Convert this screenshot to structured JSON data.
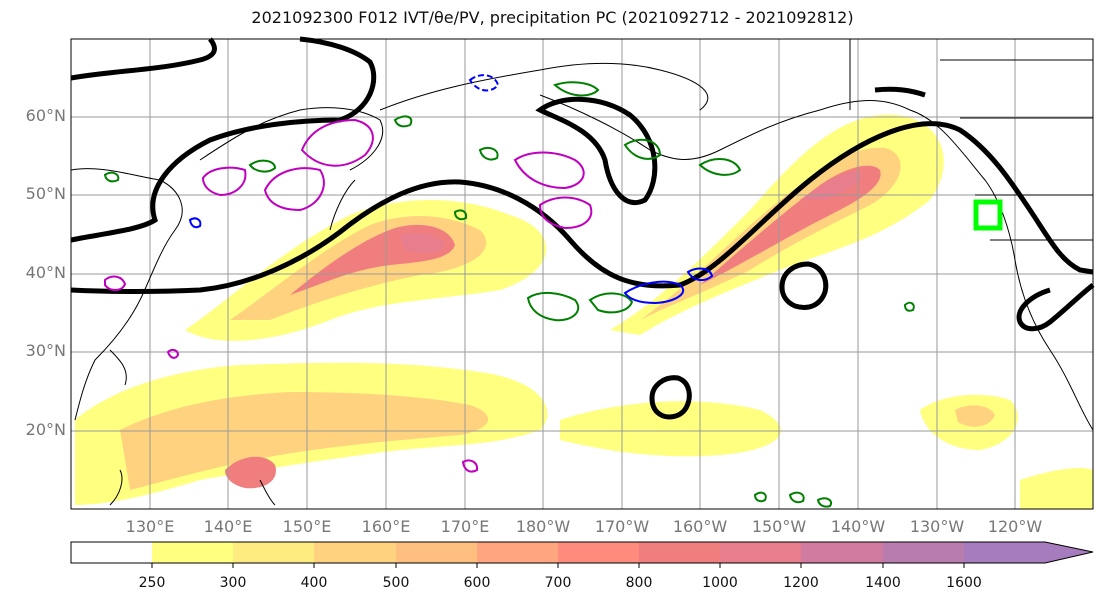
{
  "title": "2021092300 F012 IVT/θe/PV, precipitation PC (2021092712 - 2021092812)",
  "map": {
    "lat_labels": [
      "60°N",
      "50°N",
      "40°N",
      "30°N",
      "20°N"
    ],
    "lon_labels": [
      "130°E",
      "140°E",
      "150°E",
      "160°E",
      "170°E",
      "180°W",
      "170°W",
      "160°W",
      "150°W",
      "140°W",
      "130°W",
      "120°W"
    ]
  },
  "colorbar": {
    "ticks": [
      "250",
      "300",
      "400",
      "500",
      "600",
      "700",
      "800",
      "1000",
      "1200",
      "1400",
      "1600"
    ],
    "colors": [
      "#ffffff",
      "#ffff80",
      "#ffec80",
      "#ffd27f",
      "#ffbf7f",
      "#ffa57f",
      "#ff8b7c",
      "#f07e7e",
      "#e77d8d",
      "#d27ba0",
      "#b87caf",
      "#a67cbe"
    ]
  },
  "legend_colors": {
    "theta_e": "#000000",
    "pv": "#c000c0",
    "precip_pos": "#008000",
    "precip_neg": "#0000ff",
    "target": "#00ff00"
  }
}
